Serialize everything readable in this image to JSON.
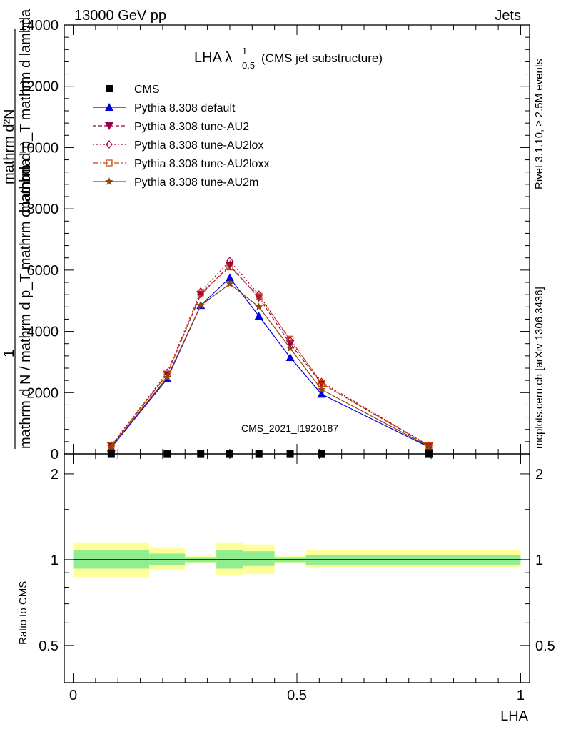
{
  "header": {
    "left": "13000 GeV pp",
    "right": "Jets"
  },
  "side": {
    "rivet": "Rivet 3.1.10, ≥ 2.5M events",
    "mcplots": "mcplots.cern.ch [arXiv:1306.3436]"
  },
  "watermark": "CMS_2021_I1920187",
  "upper_title": {
    "main": "LHA λ",
    "sup": "1",
    "sub": "0.5",
    "suffix": "(CMS jet substructure)"
  },
  "ylabel_upper": {
    "one": "1",
    "denominator": "mathrm d N / mathrm d p_T mathrm d lambda",
    "numerator": "mathrm d²N",
    "lower_line": "mathrm d p_T mathrm d lambda"
  },
  "ylabel_lower": "Ratio to CMS",
  "xlabel": "LHA",
  "chart_data": [
    {
      "type": "line",
      "panel": "main",
      "title": "LHA λ^1_0.5 (CMS jet substructure)",
      "xlabel": "",
      "ylabel": "1 / (mathrm d N / mathrm d p_T mathrm d lambda) · mathrm d²N / (mathrm d p_T mathrm d lambda)",
      "xlim": [
        -0.02,
        1.02
      ],
      "ylim": [
        0,
        14000
      ],
      "yticks": [
        0,
        2000,
        4000,
        6000,
        8000,
        10000,
        12000,
        14000
      ],
      "ytick_labels": [
        "0",
        "2000",
        "4000",
        "6000",
        "8000",
        "10000",
        "12000",
        "14000"
      ],
      "legend_position": "top-left",
      "x": [
        0.085,
        0.21,
        0.285,
        0.35,
        0.415,
        0.485,
        0.555,
        0.795
      ],
      "series": [
        {
          "name": "CMS",
          "marker": "square",
          "line": "none",
          "color": "#000000",
          "values": [
            10,
            8,
            8,
            8,
            8,
            8,
            8,
            10
          ]
        },
        {
          "name": "Pythia 8.308 default",
          "marker": "triangle-up",
          "line": "solid",
          "color": "#0000dd",
          "values": [
            200,
            2450,
            4850,
            5750,
            4500,
            3150,
            1950,
            220
          ]
        },
        {
          "name": "Pythia 8.308 tune-AU2",
          "marker": "triangle-down",
          "line": "dashed",
          "color": "#990044",
          "values": [
            260,
            2600,
            5200,
            6150,
            5100,
            3600,
            2300,
            260
          ]
        },
        {
          "name": "Pythia 8.308 tune-AU2lox",
          "marker": "diamond-open",
          "line": "dotted",
          "color": "#aa0033",
          "values": [
            280,
            2650,
            5300,
            6300,
            5200,
            3700,
            2350,
            270
          ]
        },
        {
          "name": "Pythia 8.308 tune-AU2loxx",
          "marker": "square-open",
          "line": "dashdot",
          "color": "#cc4400",
          "values": [
            270,
            2600,
            5250,
            6100,
            5150,
            3750,
            2300,
            270
          ]
        },
        {
          "name": "Pythia 8.308 tune-AU2m",
          "marker": "star",
          "line": "solid",
          "color": "#8b4513",
          "values": [
            230,
            2500,
            4850,
            5550,
            4800,
            3450,
            2100,
            240
          ]
        }
      ]
    },
    {
      "type": "area",
      "panel": "ratio",
      "xlabel": "LHA",
      "ylabel": "Ratio to CMS",
      "xlim": [
        -0.02,
        1.02
      ],
      "ylim": [
        0.37,
        2.35
      ],
      "log_y": true,
      "yticks": [
        0.5,
        1,
        2
      ],
      "ytick_labels": [
        "0.5",
        "1",
        "2"
      ],
      "xticks": [
        0,
        0.5,
        1
      ],
      "xtick_labels": [
        "0",
        "0.5",
        "1"
      ],
      "reference_line": 1,
      "bins": [
        {
          "x0": 0.0,
          "x1": 0.17,
          "stat": [
            0.93,
            1.08
          ],
          "total": [
            0.87,
            1.15
          ]
        },
        {
          "x0": 0.17,
          "x1": 0.25,
          "stat": [
            0.96,
            1.05
          ],
          "total": [
            0.92,
            1.1
          ]
        },
        {
          "x0": 0.25,
          "x1": 0.32,
          "stat": [
            0.98,
            1.02
          ],
          "total": [
            0.97,
            1.03
          ]
        },
        {
          "x0": 0.32,
          "x1": 0.38,
          "stat": [
            0.93,
            1.08
          ],
          "total": [
            0.88,
            1.15
          ]
        },
        {
          "x0": 0.38,
          "x1": 0.45,
          "stat": [
            0.95,
            1.07
          ],
          "total": [
            0.89,
            1.13
          ]
        },
        {
          "x0": 0.45,
          "x1": 0.52,
          "stat": [
            0.98,
            1.02
          ],
          "total": [
            0.97,
            1.03
          ]
        },
        {
          "x0": 0.52,
          "x1": 1.0,
          "stat": [
            0.96,
            1.04
          ],
          "total": [
            0.94,
            1.08
          ]
        }
      ]
    }
  ],
  "colors": {
    "stat_band": "#90ee90",
    "total_band": "#ffff99",
    "reference": "#000000"
  }
}
